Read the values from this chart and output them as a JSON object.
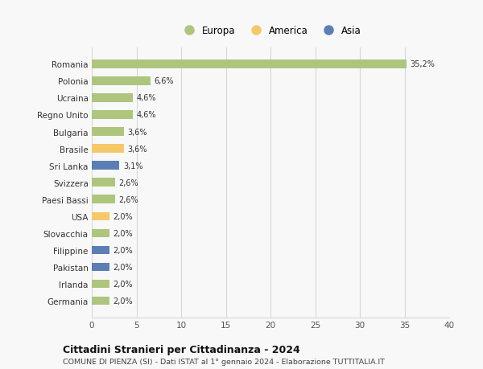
{
  "categories": [
    "Germania",
    "Irlanda",
    "Pakistan",
    "Filippine",
    "Slovacchia",
    "USA",
    "Paesi Bassi",
    "Svizzera",
    "Sri Lanka",
    "Brasile",
    "Bulgaria",
    "Regno Unito",
    "Ucraina",
    "Polonia",
    "Romania"
  ],
  "values": [
    2.0,
    2.0,
    2.0,
    2.0,
    2.0,
    2.0,
    2.6,
    2.6,
    3.1,
    3.6,
    3.6,
    4.6,
    4.6,
    6.6,
    35.2
  ],
  "labels": [
    "2,0%",
    "2,0%",
    "2,0%",
    "2,0%",
    "2,0%",
    "2,0%",
    "2,6%",
    "2,6%",
    "3,1%",
    "3,6%",
    "3,6%",
    "4,6%",
    "4,6%",
    "6,6%",
    "35,2%"
  ],
  "colors": [
    "#aec57e",
    "#aec57e",
    "#5b7fb5",
    "#5b7fb5",
    "#aec57e",
    "#f5c96a",
    "#aec57e",
    "#aec57e",
    "#5b7fb5",
    "#f5c96a",
    "#aec57e",
    "#aec57e",
    "#aec57e",
    "#aec57e",
    "#aec57e"
  ],
  "legend": [
    {
      "label": "Europa",
      "color": "#aec57e"
    },
    {
      "label": "America",
      "color": "#f5c96a"
    },
    {
      "label": "Asia",
      "color": "#5b7fb5"
    }
  ],
  "title": "Cittadini Stranieri per Cittadinanza - 2024",
  "subtitle": "COMUNE DI PIENZA (SI) - Dati ISTAT al 1° gennaio 2024 - Elaborazione TUTTITALIA.IT",
  "xlim": [
    0,
    40
  ],
  "xticks": [
    0,
    5,
    10,
    15,
    20,
    25,
    30,
    35,
    40
  ],
  "background_color": "#f8f8f8",
  "grid_color": "#d8d8d8",
  "bar_height": 0.5
}
